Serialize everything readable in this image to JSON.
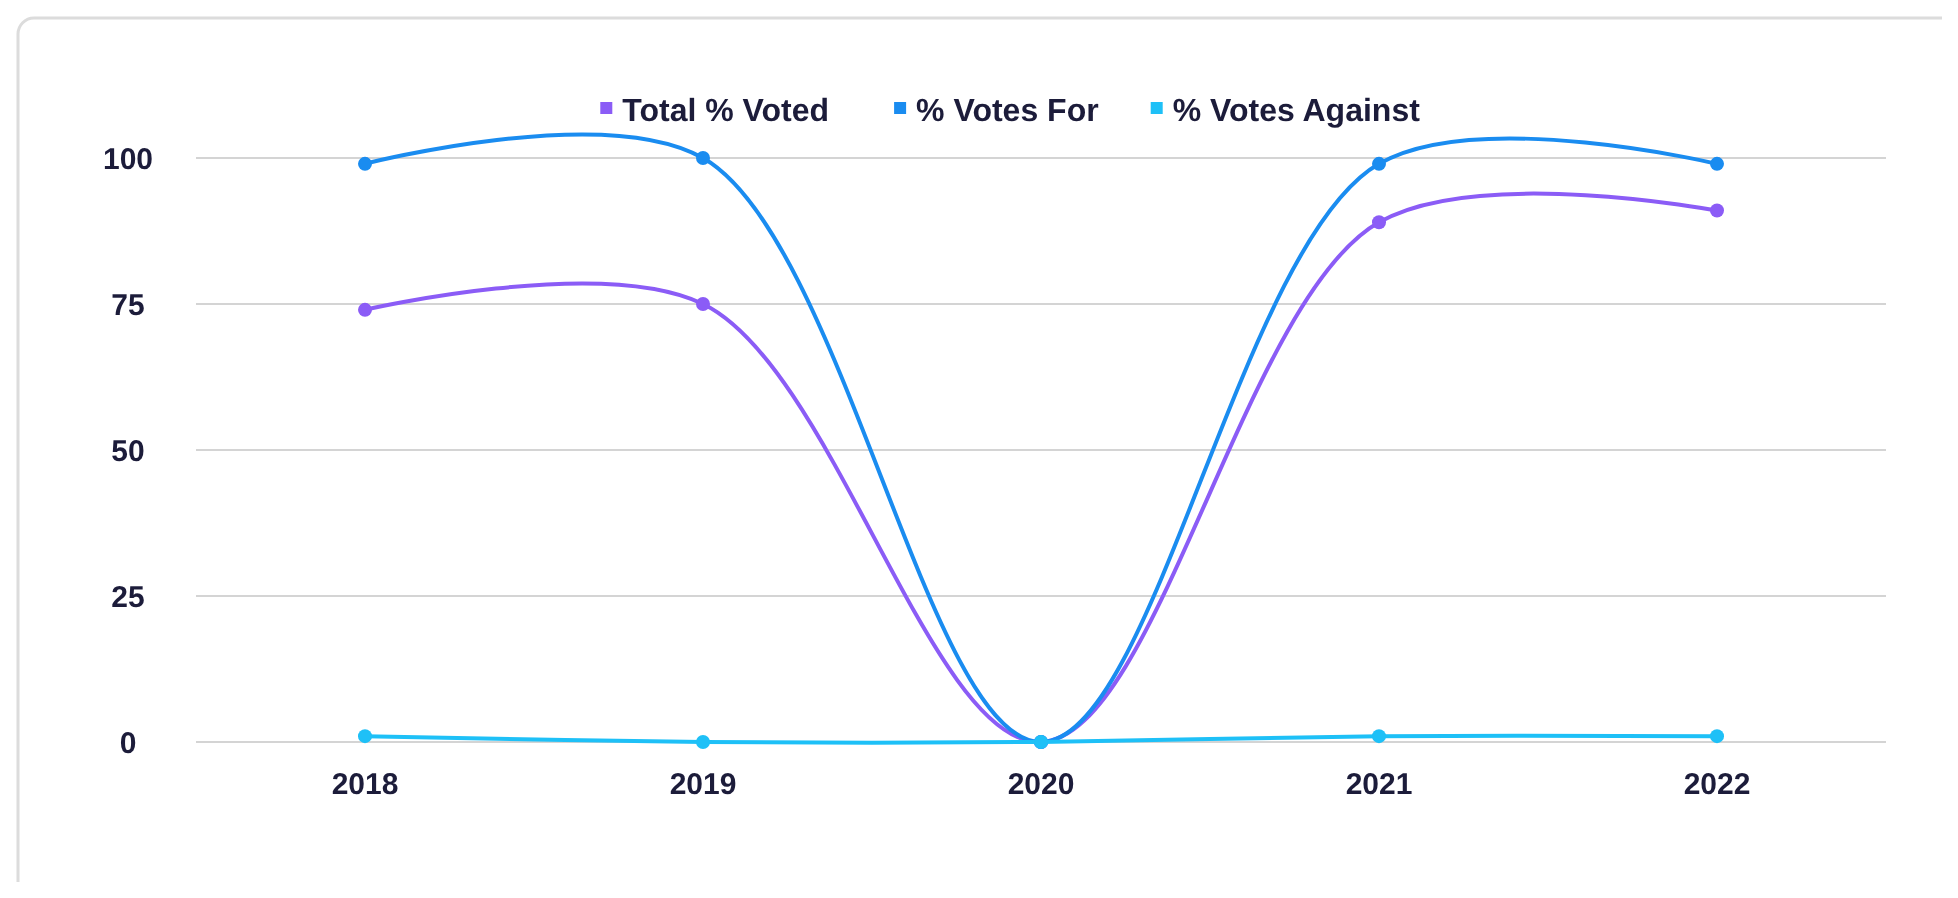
{
  "chart_data": {
    "type": "line",
    "categories": [
      "2018",
      "2019",
      "2020",
      "2021",
      "2022"
    ],
    "series": [
      {
        "name": "Total % Voted",
        "color": "#8b5cf6",
        "values": [
          74,
          75,
          0,
          89,
          91
        ]
      },
      {
        "name": "% Votes For",
        "color": "#1a8cf0",
        "values": [
          99,
          100,
          0,
          99,
          99
        ]
      },
      {
        "name": "% Votes Against",
        "color": "#1ec0f7",
        "values": [
          1,
          0,
          0,
          1,
          1
        ]
      }
    ],
    "ylim": [
      0,
      100
    ],
    "yticks": [
      0,
      25,
      50,
      75,
      100
    ],
    "grid": "y",
    "legend": "top",
    "marker": "circle",
    "line_style": "solid"
  }
}
